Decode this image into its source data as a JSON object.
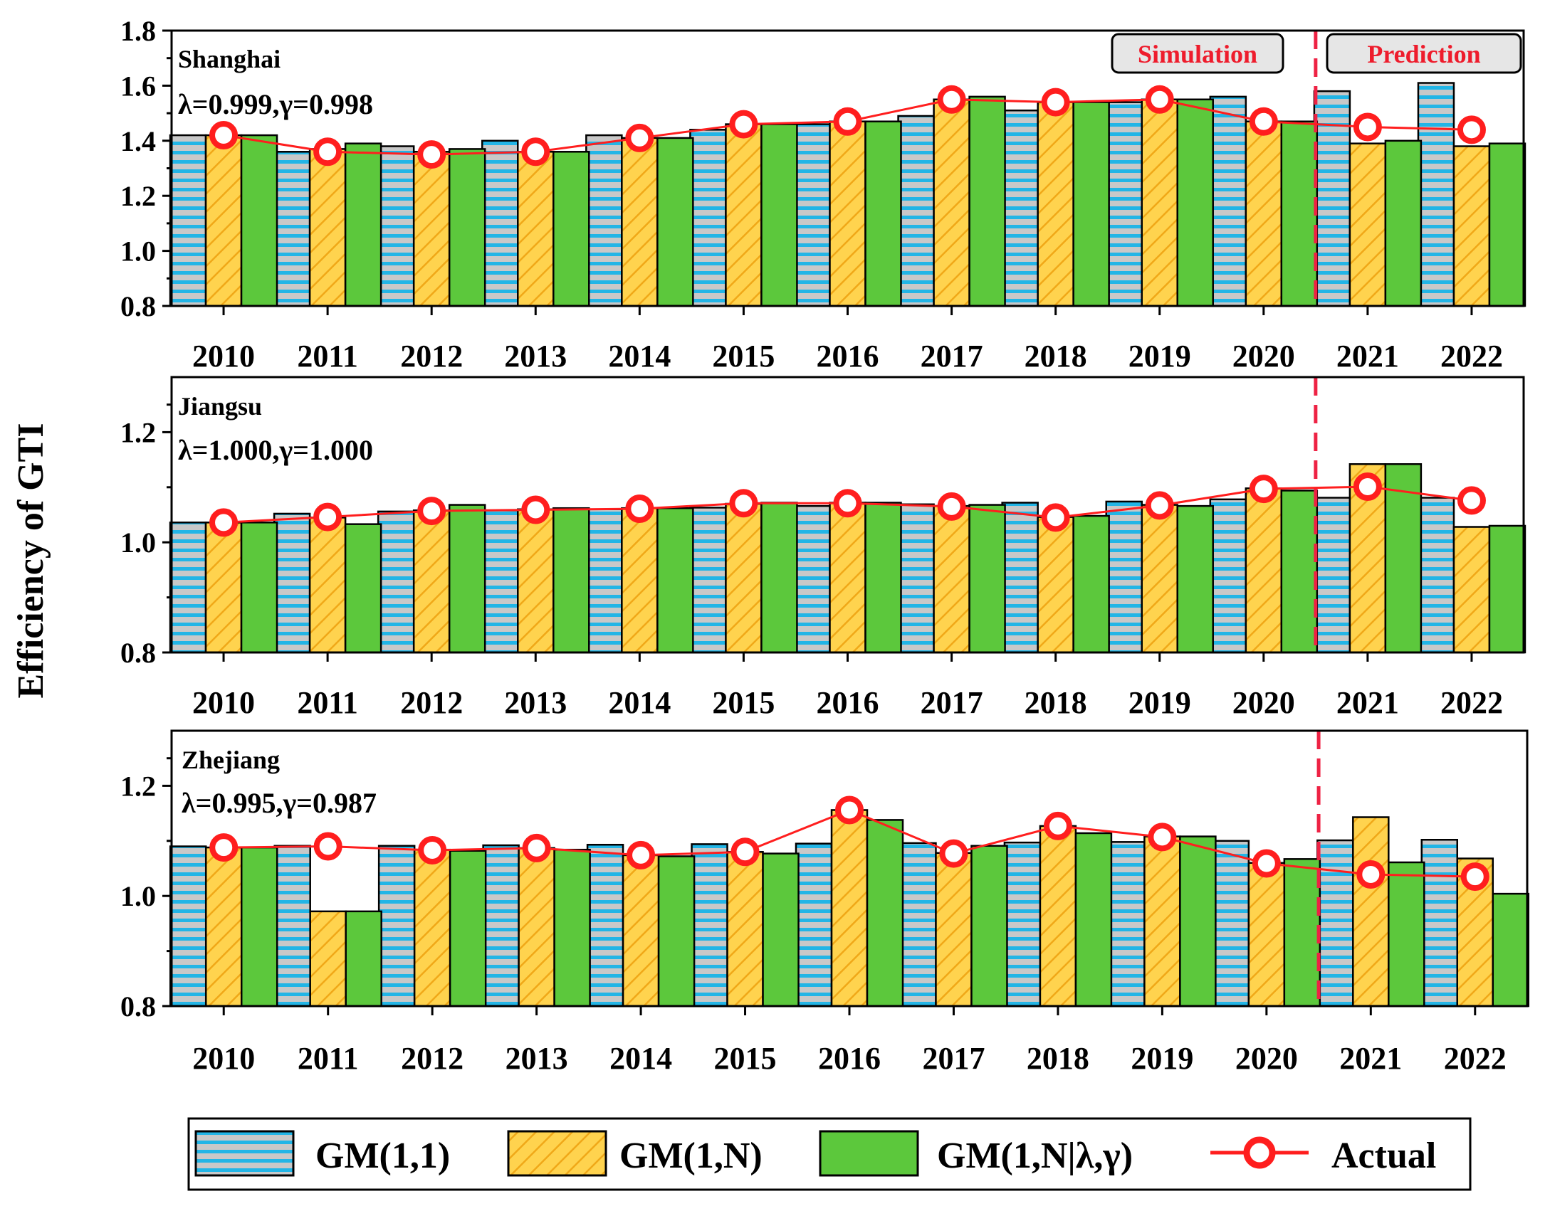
{
  "figure": {
    "ylabel": "Efficiency of GTI",
    "period_labels": {
      "simulation": "Simulation",
      "prediction": "Prediction"
    },
    "colors": {
      "gm11_fill": "#c8c8c8",
      "gm11_stripe": "#22b5e6",
      "gm1n_fill": "#ffd34e",
      "gm1n_hatch": "#f0a818",
      "gm1nlg_fill": "#5cc83c",
      "actual_line": "#ff1e1e",
      "divider": "#ee2244",
      "period_box": "#e6e6e6"
    }
  },
  "legend": {
    "items": [
      {
        "label": "GM(1,1)",
        "key": "gm11"
      },
      {
        "label": "GM(1,N)",
        "key": "gm1n"
      },
      {
        "label": "GM(1,N|λ,γ)",
        "key": "gm1nlg"
      },
      {
        "label": "Actual",
        "key": "actual"
      }
    ]
  },
  "chart_data": [
    {
      "type": "bar",
      "title": "Shanghai",
      "params": "λ=0.999,γ=0.998",
      "categories": [
        "2010",
        "2011",
        "2012",
        "2013",
        "2014",
        "2015",
        "2016",
        "2017",
        "2018",
        "2019",
        "2020",
        "2021",
        "2022"
      ],
      "ylim": [
        0.8,
        1.8
      ],
      "yticks": [
        "0.8",
        "1.0",
        "1.2",
        "1.4",
        "1.6",
        "1.8"
      ],
      "divider_after": "2020",
      "show_period_labels": true,
      "series": [
        {
          "name": "GM(1,1)",
          "key": "gm11",
          "values": [
            1.42,
            1.36,
            1.38,
            1.4,
            1.42,
            1.44,
            1.46,
            1.49,
            1.51,
            1.54,
            1.56,
            1.58,
            1.61
          ]
        },
        {
          "name": "GM(1,N)",
          "key": "gm1n",
          "values": [
            1.42,
            1.37,
            1.36,
            1.36,
            1.41,
            1.46,
            1.47,
            1.55,
            1.54,
            1.55,
            1.47,
            1.39,
            1.38
          ]
        },
        {
          "name": "GM(1,N|λ,γ)",
          "key": "gm1nlg",
          "values": [
            1.42,
            1.39,
            1.37,
            1.36,
            1.41,
            1.46,
            1.47,
            1.56,
            1.54,
            1.55,
            1.47,
            1.4,
            1.39
          ]
        },
        {
          "name": "Actual",
          "key": "actual",
          "type": "line",
          "values": [
            1.42,
            1.36,
            1.35,
            1.36,
            1.41,
            1.46,
            1.47,
            1.55,
            1.54,
            1.55,
            1.47,
            1.45,
            1.44
          ]
        }
      ]
    },
    {
      "type": "bar",
      "title": "Jiangsu",
      "params": "λ=1.000,γ=1.000",
      "categories": [
        "2010",
        "2011",
        "2012",
        "2013",
        "2014",
        "2015",
        "2016",
        "2017",
        "2018",
        "2019",
        "2020",
        "2021",
        "2022"
      ],
      "ylim": [
        0.8,
        1.3
      ],
      "yticks": [
        "0.8",
        "1.0",
        "1.2"
      ],
      "divider_after": "2020",
      "show_period_labels": false,
      "series": [
        {
          "name": "GM(1,1)",
          "key": "gm11",
          "values": [
            1.036,
            1.052,
            1.056,
            1.058,
            1.06,
            1.063,
            1.066,
            1.069,
            1.072,
            1.074,
            1.078,
            1.081,
            1.081
          ]
        },
        {
          "name": "GM(1,N)",
          "key": "gm1n",
          "values": [
            1.036,
            1.045,
            1.058,
            1.06,
            1.062,
            1.07,
            1.072,
            1.066,
            1.046,
            1.068,
            1.098,
            1.142,
            1.028
          ]
        },
        {
          "name": "GM(1,N|λ,γ)",
          "key": "gm1nlg",
          "values": [
            1.036,
            1.033,
            1.068,
            1.062,
            1.062,
            1.072,
            1.072,
            1.068,
            1.048,
            1.066,
            1.094,
            1.142,
            1.03
          ]
        },
        {
          "name": "Actual",
          "key": "actual",
          "type": "line",
          "values": [
            1.036,
            1.046,
            1.057,
            1.059,
            1.061,
            1.071,
            1.071,
            1.065,
            1.045,
            1.067,
            1.097,
            1.101,
            1.076
          ]
        }
      ]
    },
    {
      "type": "bar",
      "title": "Zhejiang",
      "params": "λ=0.995,γ=0.987",
      "categories": [
        "2010",
        "2011",
        "2012",
        "2013",
        "2014",
        "2015",
        "2016",
        "2017",
        "2018",
        "2019",
        "2020",
        "2021",
        "2022"
      ],
      "ylim": [
        0.8,
        1.3
      ],
      "yticks": [
        "0.8",
        "1.0",
        "1.2"
      ],
      "divider_after": "2020",
      "show_period_labels": false,
      "series": [
        {
          "name": "GM(1,1)",
          "key": "gm11",
          "values": [
            1.09,
            1.091,
            1.091,
            1.092,
            1.093,
            1.094,
            1.095,
            1.096,
            1.097,
            1.098,
            1.1,
            1.101,
            1.102
          ]
        },
        {
          "name": "GM(1,N)",
          "key": "gm1n",
          "values": [
            1.088,
            0.972,
            1.084,
            1.087,
            1.074,
            1.08,
            1.156,
            1.078,
            1.127,
            1.108,
            1.06,
            1.143,
            1.068
          ]
        },
        {
          "name": "GM(1,N|λ,γ)",
          "key": "gm1nlg",
          "values": [
            1.088,
            0.972,
            1.082,
            1.084,
            1.072,
            1.077,
            1.138,
            1.091,
            1.114,
            1.108,
            1.067,
            1.061,
            1.004
          ]
        },
        {
          "name": "Actual",
          "key": "actual",
          "type": "line",
          "values": [
            1.088,
            1.09,
            1.083,
            1.087,
            1.074,
            1.08,
            1.156,
            1.077,
            1.127,
            1.107,
            1.059,
            1.039,
            1.035
          ]
        }
      ]
    }
  ]
}
